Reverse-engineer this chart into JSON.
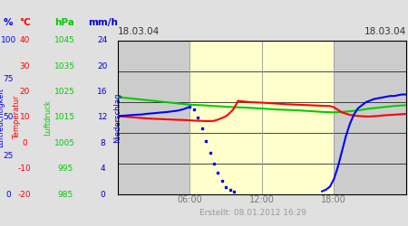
{
  "figsize": [
    4.5,
    2.5
  ],
  "dpi": 100,
  "bg_color": "#e0e0e0",
  "plot_bg_night": "#cccccc",
  "plot_bg_day": "#ffffcc",
  "x_min": 0,
  "x_max": 1440,
  "x_ticks": [
    360,
    720,
    1080
  ],
  "x_tick_labels": [
    "06:00",
    "12:00",
    "18:00"
  ],
  "x_date_left": "18.03.04",
  "x_date_right": "18.03.04",
  "day_start": 360,
  "day_end": 1080,
  "footnote": "Erstellt: 08.01.2012 16:29",
  "col_pct": 0.07,
  "col_temp": 0.21,
  "col_hpa": 0.55,
  "col_mmh": 0.87,
  "pct_ticks": [
    0,
    25,
    50,
    75,
    100
  ],
  "temp_ticks": [
    -20,
    -10,
    0,
    10,
    20,
    30,
    40
  ],
  "hpa_ticks": [
    985,
    995,
    1005,
    1015,
    1025,
    1035,
    1045
  ],
  "mmh_ticks": [
    0,
    4,
    8,
    12,
    16,
    20,
    24
  ],
  "hpa_min": 985,
  "hpa_max": 1045,
  "temp_min": -20,
  "temp_max": 40,
  "pct_min": 0,
  "pct_max": 100,
  "mmh_min": 0,
  "mmh_max": 24,
  "green_x": [
    0,
    60,
    120,
    180,
    240,
    300,
    360,
    420,
    480,
    540,
    600,
    660,
    720,
    780,
    840,
    900,
    960,
    1020,
    1080,
    1140,
    1200,
    1260,
    1320,
    1380,
    1440
  ],
  "green_y": [
    1023,
    1022.5,
    1022,
    1021.5,
    1021,
    1020.5,
    1020,
    1019.8,
    1019.5,
    1019.2,
    1019,
    1018.8,
    1018.5,
    1018.2,
    1018,
    1017.8,
    1017.5,
    1017.2,
    1017,
    1017.3,
    1017.8,
    1018.5,
    1019.0,
    1019.5,
    1019.8
  ],
  "red_x": [
    0,
    60,
    120,
    180,
    240,
    300,
    340,
    360,
    380,
    400,
    420,
    440,
    460,
    480,
    500,
    520,
    540,
    560,
    580,
    600,
    660,
    720,
    780,
    840,
    900,
    960,
    1020,
    1060,
    1080,
    1100,
    1120,
    1140,
    1160,
    1180,
    1200,
    1220,
    1240,
    1260,
    1280,
    1300,
    1320,
    1340,
    1360,
    1380,
    1400,
    1420,
    1440
  ],
  "red_y": [
    10.5,
    10.2,
    9.8,
    9.5,
    9.3,
    9.1,
    9.0,
    8.9,
    8.8,
    8.7,
    8.7,
    8.6,
    8.6,
    8.7,
    9.2,
    9.8,
    10.5,
    11.8,
    13.5,
    16.5,
    16.0,
    15.8,
    15.5,
    15.2,
    15.0,
    14.8,
    14.6,
    14.5,
    14.0,
    13.0,
    12.0,
    11.5,
    11.0,
    10.8,
    10.6,
    10.5,
    10.4,
    10.4,
    10.5,
    10.6,
    10.8,
    10.9,
    11.0,
    11.1,
    11.2,
    11.3,
    11.4
  ],
  "blue_solid_x1": [
    0,
    30,
    60,
    90,
    120,
    150,
    180,
    210,
    240,
    270,
    300,
    330,
    360
  ],
  "blue_solid_y1": [
    51,
    51.2,
    51.5,
    51.8,
    52,
    52.5,
    52.8,
    53.2,
    53.5,
    54,
    54.5,
    55.5,
    57
  ],
  "blue_dashed_x": [
    360,
    380,
    400,
    420,
    440,
    460,
    480,
    500,
    520,
    540,
    560,
    580
  ],
  "blue_dashed_y": [
    57,
    55,
    50,
    43,
    35,
    27,
    20,
    14,
    9,
    5,
    3,
    2
  ],
  "blue_solid_x2": [
    1020,
    1040,
    1060,
    1080,
    1100,
    1120,
    1140,
    1160,
    1180,
    1200,
    1220,
    1240,
    1260,
    1280,
    1300,
    1320,
    1340,
    1360,
    1380,
    1400,
    1420,
    1440
  ],
  "blue_solid_y2": [
    2,
    3,
    5,
    10,
    18,
    28,
    38,
    46,
    52,
    56,
    58,
    60,
    61,
    62,
    62.5,
    63,
    63.5,
    64,
    64,
    64.5,
    65,
    65
  ]
}
